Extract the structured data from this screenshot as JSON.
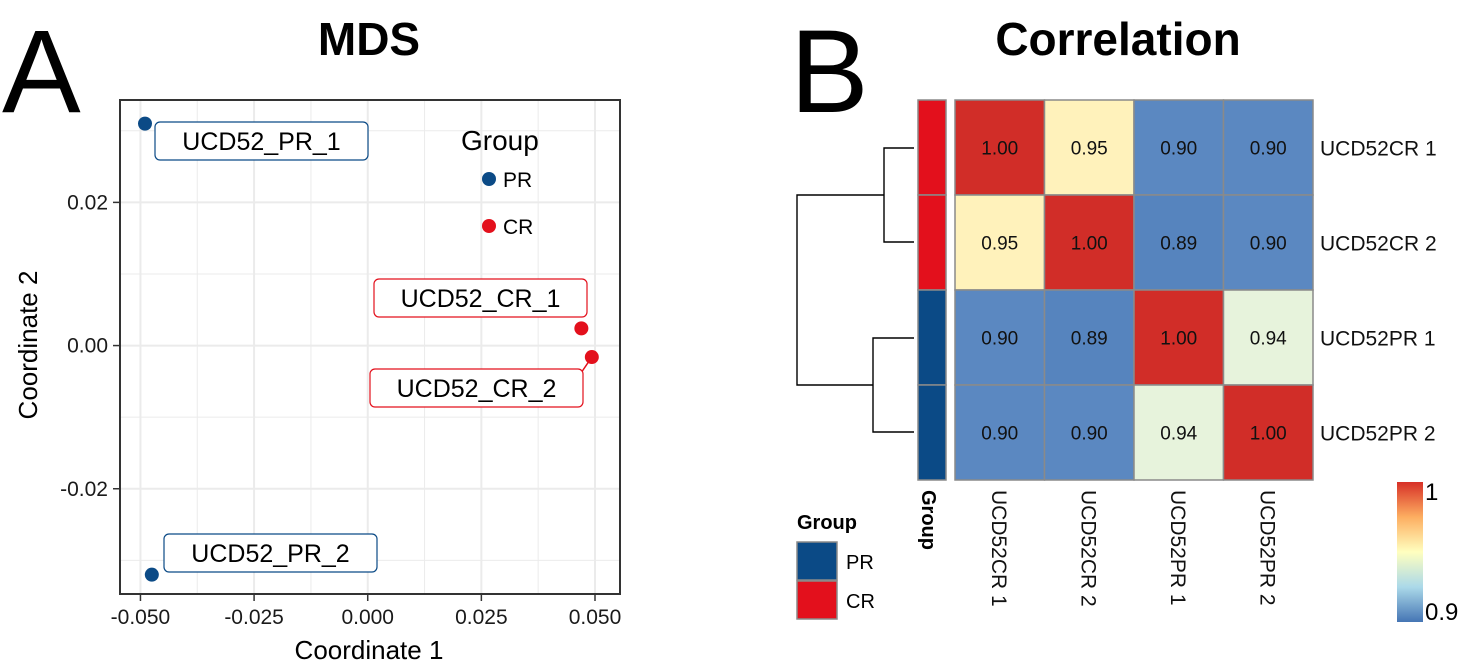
{
  "panels": {
    "a_letter": "A",
    "b_letter": "B"
  },
  "colors": {
    "pr": "#0b4a86",
    "cr": "#e3101c",
    "grid": "#ebebeb",
    "cell_border": "#8a8a8a"
  },
  "chart_data": [
    {
      "type": "scatter",
      "title": "MDS",
      "xlabel": "Coordinate 1",
      "ylabel": "Coordinate 2",
      "xlim": [
        -0.0545,
        0.0555
      ],
      "ylim": [
        -0.0347,
        0.0343
      ],
      "x_ticks": [
        -0.05,
        -0.025,
        0.0,
        0.025,
        0.05
      ],
      "x_tick_labels": [
        "-0.050",
        "-0.025",
        "0.000",
        "0.025",
        "0.050"
      ],
      "y_ticks": [
        -0.02,
        0.0,
        0.02
      ],
      "y_tick_labels": [
        "-0.02",
        "0.00",
        "0.02"
      ],
      "grid": true,
      "legend": {
        "title": "Group",
        "position": "top-right",
        "items": [
          {
            "label": "PR",
            "color": "#0b4a86"
          },
          {
            "label": "CR",
            "color": "#e3101c"
          }
        ]
      },
      "points": [
        {
          "label": "UCD52_PR_1",
          "group": "PR",
          "x": -0.049,
          "y": 0.031
        },
        {
          "label": "UCD52_PR_2",
          "group": "PR",
          "x": -0.0475,
          "y": -0.032
        },
        {
          "label": "UCD52_CR_1",
          "group": "CR",
          "x": 0.047,
          "y": 0.0024
        },
        {
          "label": "UCD52_CR_2",
          "group": "CR",
          "x": 0.0493,
          "y": -0.0016
        }
      ]
    },
    {
      "type": "heatmap",
      "title": "Correlation",
      "rows": [
        "UCD52CR 1",
        "UCD52CR 2",
        "UCD52PR 1",
        "UCD52PR 2"
      ],
      "cols": [
        "UCD52CR 1",
        "UCD52CR 2",
        "UCD52PR 1",
        "UCD52PR 2"
      ],
      "row_groups": [
        "CR",
        "CR",
        "PR",
        "PR"
      ],
      "annotation_label": "Group",
      "values": [
        [
          1.0,
          0.95,
          0.9,
          0.9
        ],
        [
          0.95,
          1.0,
          0.89,
          0.9
        ],
        [
          0.9,
          0.89,
          1.0,
          0.94
        ],
        [
          0.9,
          0.9,
          0.94,
          1.0
        ]
      ],
      "value_labels": [
        [
          "1.00",
          "0.95",
          "0.90",
          "0.90"
        ],
        [
          "0.95",
          "1.00",
          "0.89",
          "0.90"
        ],
        [
          "0.90",
          "0.89",
          "1.00",
          "0.94"
        ],
        [
          "0.90",
          "0.90",
          "0.94",
          "1.00"
        ]
      ],
      "colorbar": {
        "min_label": "0.9",
        "max_label": "1"
      },
      "group_legend": {
        "title": "Group",
        "items": [
          {
            "label": "PR",
            "color": "#0b4a86"
          },
          {
            "label": "CR",
            "color": "#e3101c"
          }
        ]
      }
    }
  ]
}
